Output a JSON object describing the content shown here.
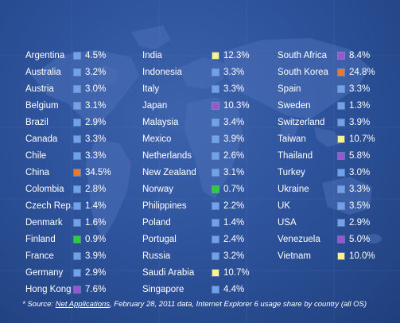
{
  "chart_data": {
    "type": "table",
    "value_unit": "%",
    "colors": {
      "blue": "#6fa2ea",
      "yellow": "#fff287",
      "purple": "#9a55d2",
      "orange": "#e9792d",
      "green": "#2ad036"
    },
    "columns": [
      [
        {
          "country": "Argentina",
          "value": 4.5,
          "label": "4.5%",
          "color": "blue"
        },
        {
          "country": "Australia",
          "value": 3.2,
          "label": "3.2%",
          "color": "blue"
        },
        {
          "country": "Austria",
          "value": 3.0,
          "label": "3.0%",
          "color": "blue"
        },
        {
          "country": "Belgium",
          "value": 3.1,
          "label": "3.1%",
          "color": "blue"
        },
        {
          "country": "Brazil",
          "value": 2.9,
          "label": "2.9%",
          "color": "blue"
        },
        {
          "country": "Canada",
          "value": 3.3,
          "label": "3.3%",
          "color": "blue"
        },
        {
          "country": "Chile",
          "value": 3.3,
          "label": "3.3%",
          "color": "blue"
        },
        {
          "country": "China",
          "value": 34.5,
          "label": "34.5%",
          "color": "orange"
        },
        {
          "country": "Colombia",
          "value": 2.8,
          "label": "2.8%",
          "color": "blue"
        },
        {
          "country": "Czech Rep.",
          "value": 1.4,
          "label": "1.4%",
          "color": "blue"
        },
        {
          "country": "Denmark",
          "value": 1.6,
          "label": "1.6%",
          "color": "blue"
        },
        {
          "country": "Finland",
          "value": 0.9,
          "label": "0.9%",
          "color": "green"
        },
        {
          "country": "France",
          "value": 3.9,
          "label": "3.9%",
          "color": "blue"
        },
        {
          "country": "Germany",
          "value": 2.9,
          "label": "2.9%",
          "color": "blue"
        },
        {
          "country": "Hong Kong",
          "value": 7.6,
          "label": "7.6%",
          "color": "purple"
        }
      ],
      [
        {
          "country": "India",
          "value": 12.3,
          "label": "12.3%",
          "color": "yellow"
        },
        {
          "country": "Indonesia",
          "value": 3.3,
          "label": "3.3%",
          "color": "blue"
        },
        {
          "country": "Italy",
          "value": 3.3,
          "label": "3.3%",
          "color": "blue"
        },
        {
          "country": "Japan",
          "value": 10.3,
          "label": "10.3%",
          "color": "purple"
        },
        {
          "country": "Malaysia",
          "value": 3.4,
          "label": "3.4%",
          "color": "blue"
        },
        {
          "country": "Mexico",
          "value": 3.9,
          "label": "3.9%",
          "color": "blue"
        },
        {
          "country": "Netherlands",
          "value": 2.6,
          "label": "2.6%",
          "color": "blue"
        },
        {
          "country": "New Zealand",
          "value": 3.1,
          "label": "3.1%",
          "color": "blue"
        },
        {
          "country": "Norway",
          "value": 0.7,
          "label": "0.7%",
          "color": "green"
        },
        {
          "country": "Philippines",
          "value": 2.2,
          "label": "2.2%",
          "color": "blue"
        },
        {
          "country": "Poland",
          "value": 1.4,
          "label": "1.4%",
          "color": "blue"
        },
        {
          "country": "Portugal",
          "value": 2.4,
          "label": "2.4%",
          "color": "blue"
        },
        {
          "country": "Russia",
          "value": 3.2,
          "label": "3.2%",
          "color": "blue"
        },
        {
          "country": "Saudi Arabia",
          "value": 10.7,
          "label": "10.7%",
          "color": "yellow"
        },
        {
          "country": "Singapore",
          "value": 4.4,
          "label": "4.4%",
          "color": "blue"
        }
      ],
      [
        {
          "country": "South Africa",
          "value": 8.4,
          "label": "8.4%",
          "color": "purple"
        },
        {
          "country": "South Korea",
          "value": 24.8,
          "label": "24.8%",
          "color": "orange"
        },
        {
          "country": "Spain",
          "value": 3.3,
          "label": "3.3%",
          "color": "blue"
        },
        {
          "country": "Sweden",
          "value": 1.3,
          "label": "1.3%",
          "color": "blue"
        },
        {
          "country": "Switzerland",
          "value": 3.9,
          "label": "3.9%",
          "color": "blue"
        },
        {
          "country": "Taiwan",
          "value": 10.7,
          "label": "10.7%",
          "color": "yellow"
        },
        {
          "country": "Thailand",
          "value": 5.8,
          "label": "5.8%",
          "color": "purple"
        },
        {
          "country": "Turkey",
          "value": 3.0,
          "label": "3.0%",
          "color": "blue"
        },
        {
          "country": "Ukraine",
          "value": 3.3,
          "label": "3.3%",
          "color": "blue"
        },
        {
          "country": "UK",
          "value": 3.5,
          "label": "3.5%",
          "color": "blue"
        },
        {
          "country": "USA",
          "value": 2.9,
          "label": "2.9%",
          "color": "blue"
        },
        {
          "country": "Venezuela",
          "value": 5.0,
          "label": "5.0%",
          "color": "purple"
        },
        {
          "country": "Vietnam",
          "value": 10.0,
          "label": "10.0%",
          "color": "yellow"
        }
      ]
    ]
  },
  "footnote": {
    "prefix": "* Source: ",
    "link_text": "Net Applications",
    "suffix": ", February 28, 2011 data, Internet Explorer 6 usage share by country (all OS)"
  }
}
